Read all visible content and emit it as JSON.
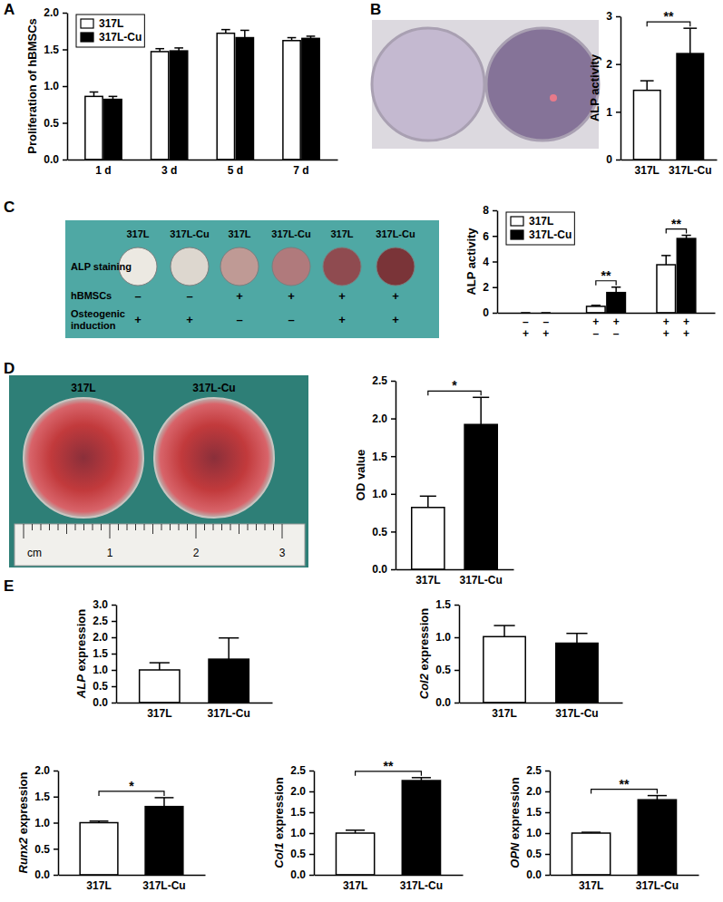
{
  "figure": {
    "panel_labels": [
      "A",
      "B",
      "C",
      "D",
      "E"
    ],
    "photo_c": {
      "column_labels": [
        "317L",
        "317L-Cu",
        "317L",
        "317L-Cu",
        "317L",
        "317L-Cu"
      ],
      "row_labels": [
        "ALP staining",
        "hBMSCs",
        "Osteogenic induction"
      ],
      "hbmscs_signs": [
        "–",
        "–",
        "+",
        "+",
        "+",
        "+"
      ],
      "induction_signs": [
        "+",
        "+",
        "–",
        "–",
        "+",
        "+"
      ]
    },
    "photo_d": {
      "column_labels": [
        "317L",
        "317L-Cu"
      ],
      "ruler_labels": [
        "cm",
        "1",
        "2",
        "3"
      ]
    }
  },
  "chart_data": [
    {
      "type": "bar",
      "y_label": "Proliferation of hBMSCs",
      "categories": [
        "1 d",
        "3 d",
        "5 d",
        "7 d"
      ],
      "series": [
        {
          "name": "317L",
          "color": "#ffffff",
          "values": [
            0.86,
            1.47,
            1.72,
            1.62
          ],
          "errors": [
            0.06,
            0.04,
            0.05,
            0.04
          ]
        },
        {
          "name": "317L-Cu",
          "color": "#000000",
          "values": [
            0.82,
            1.48,
            1.66,
            1.65
          ],
          "errors": [
            0.04,
            0.04,
            0.1,
            0.03
          ]
        }
      ],
      "ylim": [
        0,
        2
      ],
      "yticks": [
        {
          "value": 0,
          "label": "0.0"
        },
        0.5,
        {
          "value": 1,
          "label": "1.0"
        },
        1.5,
        {
          "value": 2,
          "label": "2.0"
        }
      ],
      "legend": "upper left"
    },
    {
      "type": "bar",
      "y_label": "ALP activity",
      "categories": [
        "317L",
        "317L-Cu"
      ],
      "values": [
        1.45,
        2.22
      ],
      "errors": [
        0.2,
        0.53
      ],
      "colors": [
        "#ffffff",
        "#000000"
      ],
      "ylim": [
        0,
        3
      ],
      "yticks": [
        0,
        1,
        2,
        3
      ],
      "significance": [
        {
          "label": "**"
        }
      ]
    },
    {
      "type": "bar",
      "y_label": "ALP activity",
      "categories": [
        null,
        null,
        null
      ],
      "x_tick_rows": [
        [
          "–",
          "+",
          "+"
        ],
        [
          "+",
          "–",
          "+"
        ]
      ],
      "series": [
        {
          "name": "317L",
          "color": "#ffffff",
          "values": [
            0,
            0.5,
            3.75
          ],
          "errors": [
            0,
            0.08,
            0.72
          ]
        },
        {
          "name": "317L-Cu",
          "color": "#000000",
          "values": [
            0,
            1.58,
            5.8
          ],
          "errors": [
            0,
            0.42,
            0.25
          ]
        }
      ],
      "ylim": [
        0,
        8
      ],
      "yticks": [
        0,
        2,
        4,
        6,
        8
      ],
      "legend": "upper left",
      "significance": [
        {
          "group": 1,
          "label": "**"
        },
        {
          "group": 2,
          "label": "**"
        }
      ]
    },
    {
      "type": "bar",
      "y_label": "OD value",
      "categories": [
        "317L",
        "317L-Cu"
      ],
      "values": [
        0.82,
        1.92
      ],
      "errors": [
        0.15,
        0.36
      ],
      "colors": [
        "#ffffff",
        "#000000"
      ],
      "ylim": [
        0,
        2.5
      ],
      "yticks": [
        {
          "value": 0,
          "label": "0.0"
        },
        0.5,
        {
          "value": 1,
          "label": "1.0"
        },
        1.5,
        {
          "value": 2,
          "label": "2.0"
        },
        2.5
      ],
      "significance": [
        {
          "label": "*"
        }
      ]
    },
    {
      "type": "bar",
      "y_label": "ALP expression",
      "categories": [
        "317L",
        "317L-Cu"
      ],
      "values": [
        1.0,
        1.33
      ],
      "errors": [
        0.22,
        0.65
      ],
      "colors": [
        "#ffffff",
        "#000000"
      ],
      "ylim": [
        0,
        3
      ],
      "yticks": [
        {
          "value": 0,
          "label": "0.0"
        },
        0.5,
        {
          "value": 1,
          "label": "1.0"
        },
        1.5,
        {
          "value": 2,
          "label": "2.0"
        },
        2.5,
        {
          "value": 3,
          "label": "3.0"
        }
      ]
    },
    {
      "type": "bar",
      "y_label": "Col2 expression",
      "categories": [
        "317L",
        "317L-Cu"
      ],
      "values": [
        1.01,
        0.91
      ],
      "errors": [
        0.17,
        0.15
      ],
      "colors": [
        "#ffffff",
        "#000000"
      ],
      "ylim": [
        0,
        1.5
      ],
      "yticks": [
        {
          "value": 0,
          "label": "0.0"
        },
        0.5,
        {
          "value": 1,
          "label": "1.0"
        },
        1.5
      ]
    },
    {
      "type": "bar",
      "y_label": "Runx2 expression",
      "categories": [
        "317L",
        "317L-Cu"
      ],
      "values": [
        1.0,
        1.31
      ],
      "errors": [
        0.03,
        0.17
      ],
      "colors": [
        "#ffffff",
        "#000000"
      ],
      "ylim": [
        0,
        2
      ],
      "yticks": [
        {
          "value": 0,
          "label": "0.0"
        },
        0.5,
        {
          "value": 1,
          "label": "1.0"
        },
        1.5,
        {
          "value": 2,
          "label": "2.0"
        }
      ],
      "significance": [
        {
          "label": "*"
        }
      ]
    },
    {
      "type": "bar",
      "y_label": "Col1 expression",
      "categories": [
        "317L",
        "317L-Cu"
      ],
      "values": [
        1.0,
        2.26
      ],
      "errors": [
        0.07,
        0.07
      ],
      "colors": [
        "#ffffff",
        "#000000"
      ],
      "ylim": [
        0,
        2.5
      ],
      "yticks": [
        {
          "value": 0,
          "label": "0.0"
        },
        0.5,
        {
          "value": 1,
          "label": "1.0"
        },
        1.5,
        {
          "value": 2,
          "label": "2.0"
        },
        2.5
      ],
      "significance": [
        {
          "label": "**"
        }
      ]
    },
    {
      "type": "bar",
      "y_label": "OPN expression",
      "categories": [
        "317L",
        "317L-Cu"
      ],
      "values": [
        1.0,
        1.8
      ],
      "errors": [
        0.02,
        0.1
      ],
      "colors": [
        "#ffffff",
        "#000000"
      ],
      "ylim": [
        0,
        2.5
      ],
      "yticks": [
        {
          "value": 0,
          "label": "0.0"
        },
        0.5,
        {
          "value": 1,
          "label": "1.0"
        },
        1.5,
        {
          "value": 2,
          "label": "2.0"
        },
        2.5
      ],
      "significance": [
        {
          "label": "**"
        }
      ]
    }
  ]
}
